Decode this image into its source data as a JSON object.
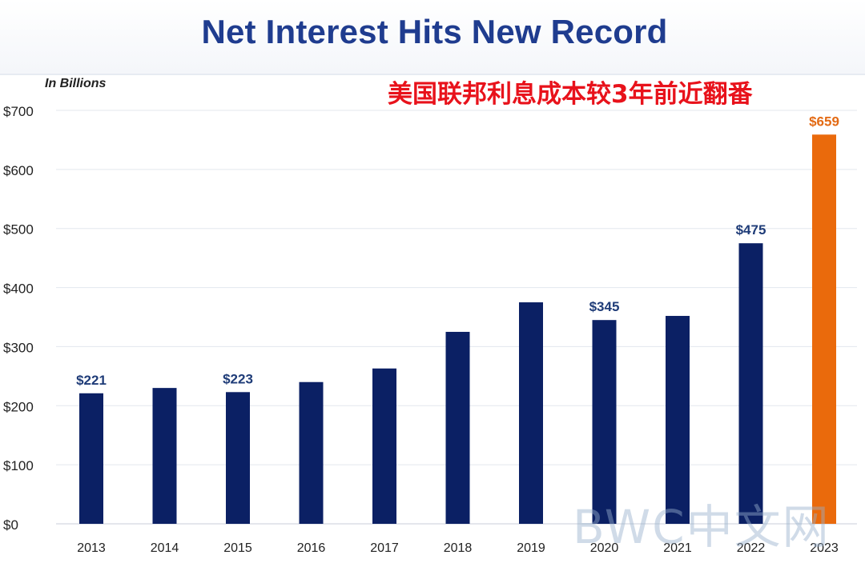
{
  "chart_data": {
    "type": "bar",
    "title": "Net Interest Hits New Record",
    "annotation": "美国联邦利息成本较3年前近翻番",
    "ylabel": "In Billions",
    "categories": [
      "2013",
      "2014",
      "2015",
      "2016",
      "2017",
      "2018",
      "2019",
      "2020",
      "2021",
      "2022",
      "2023"
    ],
    "values": [
      221,
      230,
      223,
      240,
      263,
      325,
      375,
      345,
      352,
      475,
      659
    ],
    "data_labels": {
      "0": "$221",
      "2": "$223",
      "7": "$345",
      "9": "$475",
      "10": "$659"
    },
    "ylim": [
      0,
      700
    ],
    "yticks": [
      0,
      100,
      200,
      300,
      400,
      500,
      600,
      700
    ],
    "ytick_labels": [
      "$0",
      "$100",
      "$200",
      "$300",
      "$400",
      "$500",
      "$600",
      "$700"
    ],
    "grid": true,
    "colors": {
      "default": "#0b2064",
      "highlight": "#ea6a0c",
      "label": "#1f3c78",
      "highlight_label": "#e36a14",
      "grid": "#e3e7ee"
    },
    "highlight_index": 10
  },
  "watermark": "BWC中文网"
}
